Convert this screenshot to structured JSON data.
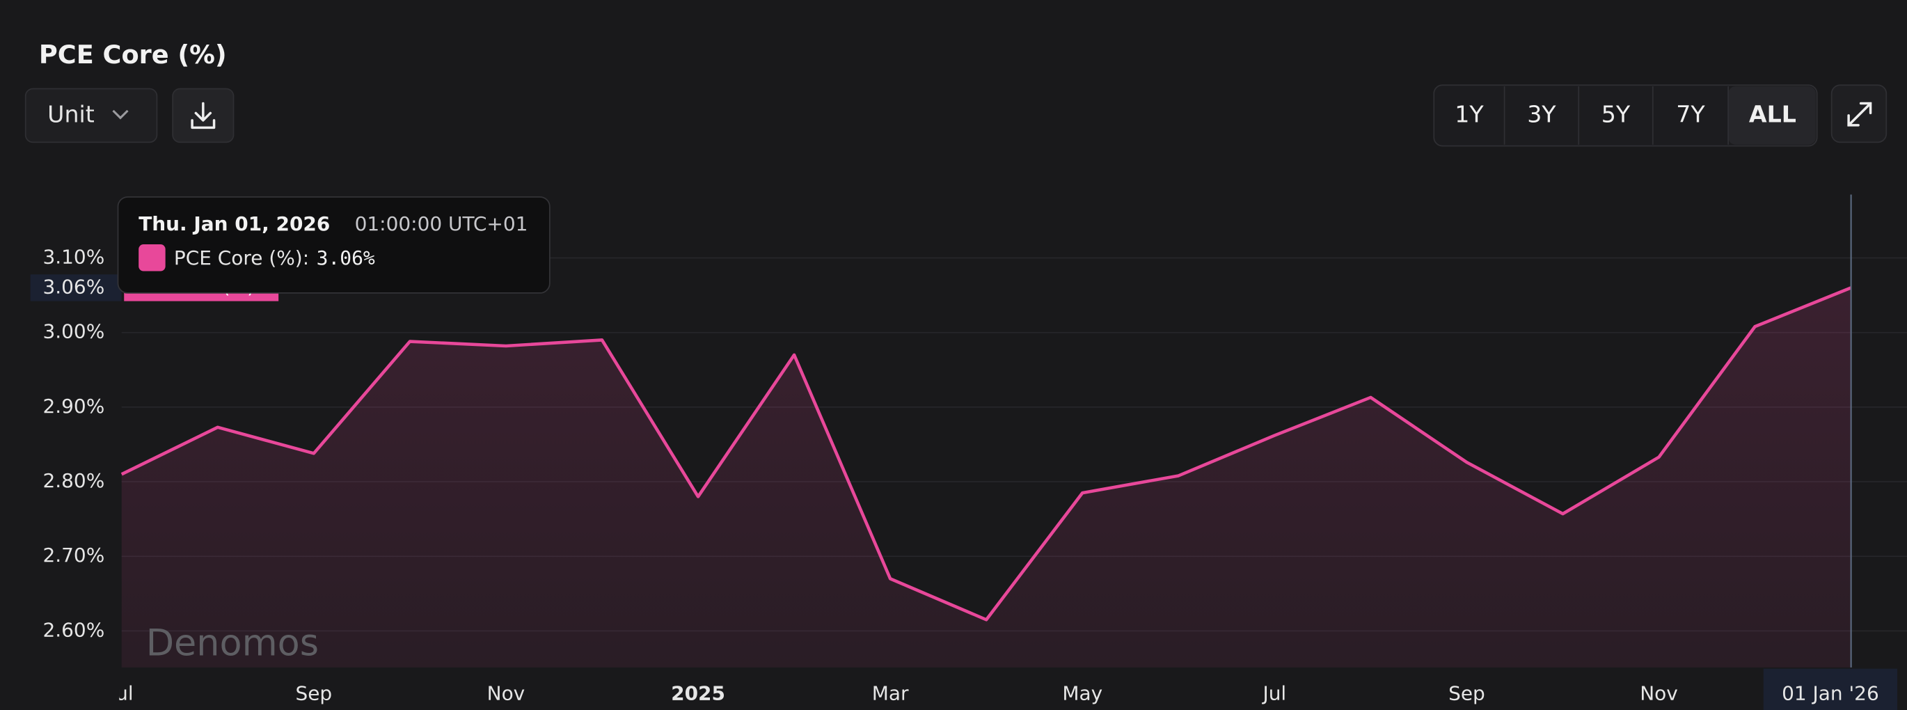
{
  "header": {
    "title": "PCE Core (%)"
  },
  "controls": {
    "unit": "Unit",
    "ranges": [
      "1Y",
      "3Y",
      "5Y",
      "7Y",
      "ALL"
    ],
    "active_range": "ALL"
  },
  "watermark": "Denomos",
  "chart_data": {
    "type": "line",
    "categories": [
      "Jul",
      null,
      "Sep",
      null,
      "Nov",
      null,
      "2025",
      null,
      "Mar",
      null,
      "May",
      null,
      "Jul",
      null,
      "Sep",
      null,
      "Nov",
      null,
      "01 Jan '26"
    ],
    "series": [
      {
        "name": "PCE Core (%)",
        "color": "#e8489a",
        "values": [
          2.81,
          2.873,
          2.838,
          2.988,
          2.982,
          2.99,
          2.78,
          2.97,
          2.67,
          2.615,
          2.785,
          2.808,
          2.862,
          2.913,
          2.826,
          2.757,
          2.833,
          3.008,
          3.06
        ]
      }
    ],
    "ylim": [
      2.551,
      3.185
    ],
    "yticks": [
      {
        "value": 2.6,
        "label": "2.60%"
      },
      {
        "value": 2.7,
        "label": "2.70%"
      },
      {
        "value": 2.8,
        "label": "2.80%"
      },
      {
        "value": 2.9,
        "label": "2.90%"
      },
      {
        "value": 3.0,
        "label": "3.00%"
      },
      {
        "value": 3.1,
        "label": "3.10%"
      }
    ],
    "grid": true,
    "tooltip": {
      "date": "Thu. Jan 01, 2026",
      "time": "01:00:00 UTC+01",
      "series_label": "PCE Core (%):",
      "value_label": "3.06%"
    }
  }
}
